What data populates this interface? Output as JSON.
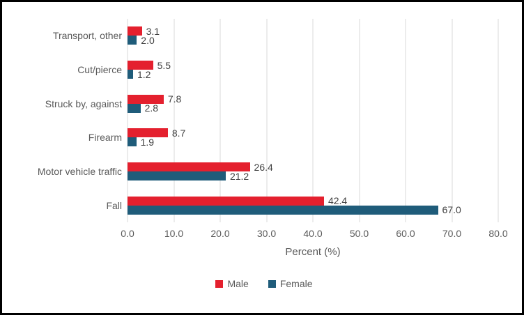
{
  "chart_data": {
    "type": "bar",
    "orientation": "horizontal",
    "title": "",
    "xlabel": "Percent (%)",
    "ylabel": "",
    "xlim": [
      0,
      80
    ],
    "xticks": [
      "0.0",
      "10.0",
      "20.0",
      "30.0",
      "40.0",
      "50.0",
      "60.0",
      "70.0",
      "80.0"
    ],
    "grid": true,
    "legend_position": "bottom",
    "categories": [
      "Transport, other",
      "Cut/pierce",
      "Struck by, against",
      "Firearm",
      "Motor vehicle traffic",
      "Fall"
    ],
    "series": [
      {
        "name": "Male",
        "color": "#e4202e",
        "values": [
          3.1,
          5.5,
          7.8,
          8.7,
          26.4,
          42.4
        ]
      },
      {
        "name": "Female",
        "color": "#1f5c7a",
        "values": [
          2.0,
          1.2,
          2.8,
          1.9,
          21.2,
          67.0
        ]
      }
    ],
    "colors": {
      "male": "#e4202e",
      "female": "#1f5c7a",
      "gridline": "#d9d9d9",
      "axis_text": "#595959",
      "value_text": "#404040",
      "frame_border": "#000000"
    }
  }
}
